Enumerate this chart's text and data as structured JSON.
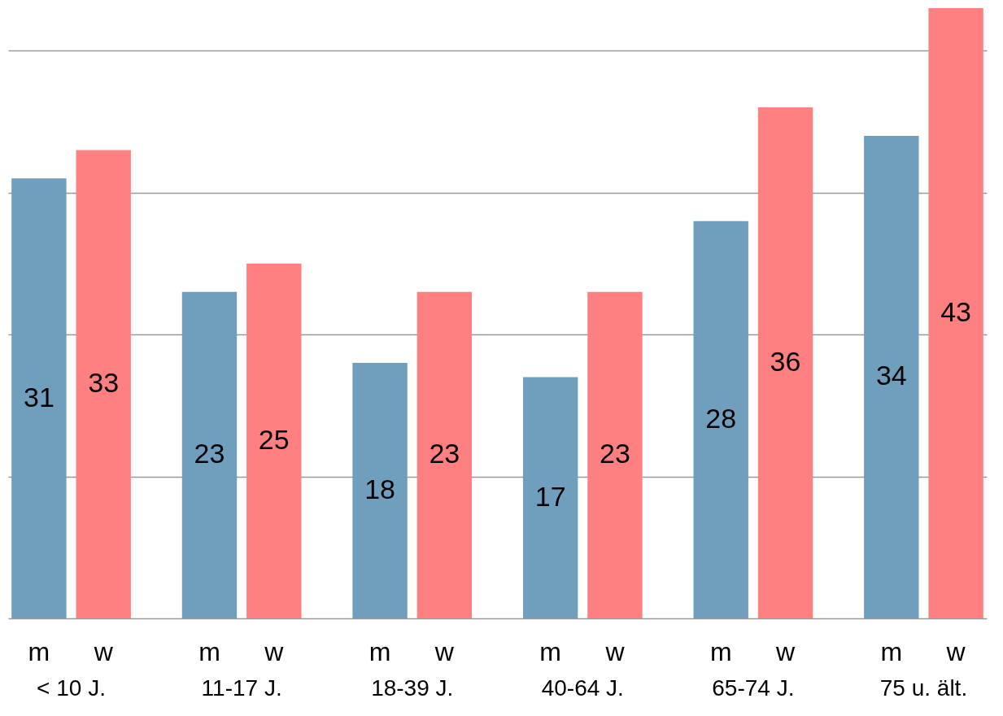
{
  "chart_data": {
    "type": "bar",
    "categories": [
      "< 10 J.",
      "11-17 J.",
      "18-39 J.",
      "40-64 J.",
      "65-74 J.",
      "75 u. ält."
    ],
    "series": [
      {
        "name": "m",
        "color": "#6f9fbc",
        "values": [
          31,
          23,
          18,
          17,
          28,
          34
        ]
      },
      {
        "name": "w",
        "color": "#ff8080",
        "values": [
          33,
          25,
          23,
          23,
          36,
          43
        ]
      }
    ],
    "yticks": [
      {
        "value": 0,
        "label": null
      },
      {
        "value": 10,
        "label": null
      },
      {
        "value": 20,
        "label": null
      },
      {
        "value": 30,
        "label": null
      },
      {
        "value": 40,
        "label": null
      }
    ],
    "tick_labels": "x",
    "grid": "y",
    "data_labels": true
  }
}
